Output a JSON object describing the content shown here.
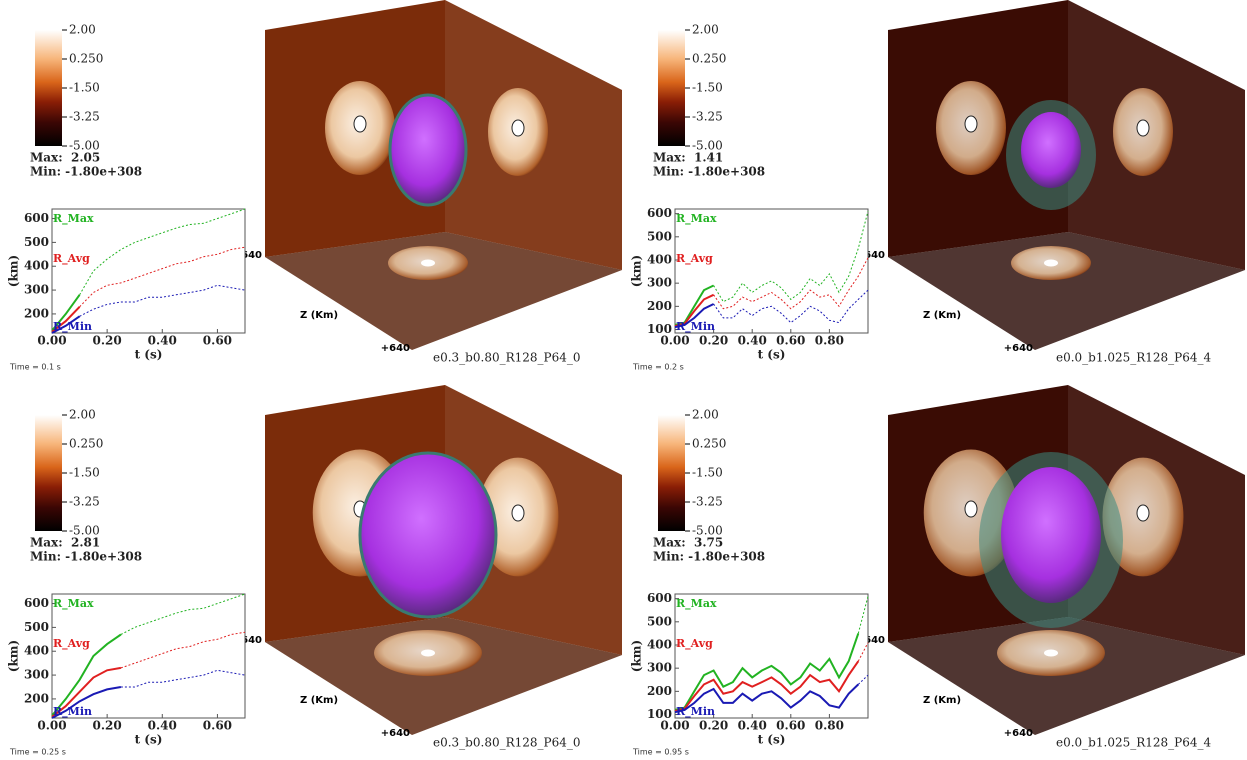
{
  "chart_data": [
    {
      "type": "line",
      "title": "e0.3_b0.80_R128_P64_0",
      "time_label": "Time = 0.1 s",
      "xlabel": "t (s)",
      "ylabel": "(km)",
      "x": [
        0,
        0.05,
        0.1,
        0.15,
        0.2,
        0.25,
        0.3,
        0.35,
        0.4,
        0.45,
        0.5,
        0.55,
        0.6,
        0.65,
        0.7
      ],
      "xlim": [
        0,
        0.7
      ],
      "ylim": [
        120,
        640
      ],
      "xticks": [
        {
          "value": 0,
          "label": "0.00"
        },
        {
          "value": 0.2,
          "label": "0.20"
        },
        {
          "value": 0.4,
          "label": "0.40"
        },
        {
          "value": 0.6,
          "label": "0.60"
        }
      ],
      "yticks": [
        200,
        300,
        400,
        500,
        600
      ],
      "series": [
        {
          "name": "R_Max",
          "color": "#22b322",
          "dashed": false,
          "values": [
            130,
            200,
            280,
            null,
            null,
            null,
            null,
            null,
            null,
            null,
            null,
            null,
            null,
            null,
            null
          ]
        },
        {
          "color": "#22b322",
          "dashed": true,
          "values": [
            null,
            null,
            280,
            380,
            430,
            470,
            500,
            520,
            540,
            560,
            575,
            580,
            600,
            620,
            640
          ]
        },
        {
          "name": "R_Avg",
          "color": "#e02020",
          "dashed": false,
          "values": [
            125,
            170,
            230,
            null,
            null,
            null,
            null,
            null,
            null,
            null,
            null,
            null,
            null,
            null,
            null
          ]
        },
        {
          "color": "#e02020",
          "dashed": true,
          "values": [
            null,
            null,
            230,
            290,
            320,
            330,
            350,
            370,
            390,
            410,
            420,
            440,
            450,
            470,
            480
          ]
        },
        {
          "name": "R_Min",
          "color": "#1a1ab4",
          "dashed": false,
          "values": [
            120,
            150,
            190,
            null,
            null,
            null,
            null,
            null,
            null,
            null,
            null,
            null,
            null,
            null,
            null
          ]
        },
        {
          "color": "#1a1ab4",
          "dashed": true,
          "values": [
            null,
            null,
            190,
            220,
            240,
            250,
            250,
            270,
            270,
            280,
            290,
            300,
            320,
            310,
            300
          ]
        }
      ],
      "colorbar": {
        "lim": [
          -5,
          2
        ],
        "ticks": [
          {
            "value": 2,
            "label": "2.00"
          },
          {
            "value": 0.25,
            "label": "0.250"
          },
          {
            "value": -1.5,
            "label": "-1.50"
          },
          {
            "value": -3.25,
            "label": "-3.25"
          },
          {
            "value": -5,
            "label": "-5.00"
          }
        ]
      },
      "max_label": "Max:  2.05",
      "min_label": "Min: -1.80e+308",
      "z_axis": {
        "label": "Z (Km)",
        "ticks": [
          "-640",
          "+640"
        ]
      },
      "box_color": "#7b2c0a"
    },
    {
      "type": "line",
      "title": "e0.0_b1.025_R128_P64_4",
      "time_label": "Time = 0.2 s",
      "xlabel": "t (s)",
      "ylabel": "(km)",
      "x": [
        0,
        0.05,
        0.1,
        0.15,
        0.2,
        0.25,
        0.3,
        0.35,
        0.4,
        0.45,
        0.5,
        0.55,
        0.6,
        0.65,
        0.7,
        0.75,
        0.8,
        0.85,
        0.9,
        0.95,
        1.0
      ],
      "xlim": [
        0,
        1.0
      ],
      "ylim": [
        85,
        620
      ],
      "xticks": [
        {
          "value": 0,
          "label": "0.00"
        },
        {
          "value": 0.2,
          "label": "0.20"
        },
        {
          "value": 0.4,
          "label": "0.40"
        },
        {
          "value": 0.6,
          "label": "0.60"
        },
        {
          "value": 0.8,
          "label": "0.80"
        }
      ],
      "yticks": [
        100,
        200,
        300,
        400,
        500,
        600
      ],
      "series": [
        {
          "name": "R_Max",
          "color": "#22b322",
          "dashed": false,
          "values": [
            120,
            130,
            200,
            270,
            290,
            null,
            null,
            null,
            null,
            null,
            null,
            null,
            null,
            null,
            null,
            null,
            null,
            null,
            null,
            null,
            null
          ]
        },
        {
          "color": "#22b322",
          "dashed": true,
          "values": [
            null,
            null,
            null,
            null,
            290,
            220,
            240,
            300,
            260,
            290,
            310,
            280,
            230,
            260,
            320,
            290,
            340,
            260,
            330,
            450,
            610
          ]
        },
        {
          "name": "R_Avg",
          "color": "#e02020",
          "dashed": false,
          "values": [
            115,
            125,
            180,
            230,
            250,
            null,
            null,
            null,
            null,
            null,
            null,
            null,
            null,
            null,
            null,
            null,
            null,
            null,
            null,
            null,
            null
          ]
        },
        {
          "color": "#e02020",
          "dashed": true,
          "values": [
            null,
            null,
            null,
            null,
            250,
            190,
            200,
            240,
            220,
            240,
            260,
            230,
            190,
            220,
            270,
            240,
            250,
            200,
            270,
            330,
            410
          ]
        },
        {
          "name": "R_Min",
          "color": "#1a1ab4",
          "dashed": false,
          "values": [
            110,
            120,
            150,
            190,
            210,
            null,
            null,
            null,
            null,
            null,
            null,
            null,
            null,
            null,
            null,
            null,
            null,
            null,
            null,
            null,
            null
          ]
        },
        {
          "color": "#1a1ab4",
          "dashed": true,
          "values": [
            null,
            null,
            null,
            null,
            210,
            150,
            150,
            190,
            160,
            190,
            200,
            170,
            130,
            160,
            200,
            180,
            140,
            130,
            190,
            230,
            270
          ]
        }
      ],
      "colorbar": {
        "lim": [
          -5,
          2
        ],
        "ticks": [
          {
            "value": 2,
            "label": "2.00"
          },
          {
            "value": 0.25,
            "label": "0.250"
          },
          {
            "value": -1.5,
            "label": "-1.50"
          },
          {
            "value": -3.25,
            "label": "-3.25"
          },
          {
            "value": -5,
            "label": "-5.00"
          }
        ]
      },
      "max_label": "Max:  1.41",
      "min_label": "Min: -1.80e+308",
      "z_axis": {
        "label": "Z (Km)",
        "ticks": [
          "-640",
          "+640"
        ]
      },
      "box_color": "#3a0c04"
    },
    {
      "type": "line",
      "title": "e0.3_b0.80_R128_P64_0",
      "time_label": "Time = 0.25 s",
      "xlabel": "t (s)",
      "ylabel": "(km)",
      "x": [
        0,
        0.05,
        0.1,
        0.15,
        0.2,
        0.25,
        0.3,
        0.35,
        0.4,
        0.45,
        0.5,
        0.55,
        0.6,
        0.65,
        0.7
      ],
      "xlim": [
        0,
        0.7
      ],
      "ylim": [
        120,
        640
      ],
      "xticks": [
        {
          "value": 0,
          "label": "0.00"
        },
        {
          "value": 0.2,
          "label": "0.20"
        },
        {
          "value": 0.4,
          "label": "0.40"
        },
        {
          "value": 0.6,
          "label": "0.60"
        }
      ],
      "yticks": [
        200,
        300,
        400,
        500,
        600
      ],
      "series": [
        {
          "name": "R_Max",
          "color": "#22b322",
          "dashed": false,
          "values": [
            130,
            200,
            280,
            380,
            430,
            470,
            null,
            null,
            null,
            null,
            null,
            null,
            null,
            null,
            null
          ]
        },
        {
          "color": "#22b322",
          "dashed": true,
          "values": [
            null,
            null,
            null,
            null,
            null,
            470,
            500,
            520,
            540,
            560,
            575,
            580,
            600,
            620,
            640
          ]
        },
        {
          "name": "R_Avg",
          "color": "#e02020",
          "dashed": false,
          "values": [
            125,
            170,
            230,
            290,
            320,
            330,
            null,
            null,
            null,
            null,
            null,
            null,
            null,
            null,
            null
          ]
        },
        {
          "color": "#e02020",
          "dashed": true,
          "values": [
            null,
            null,
            null,
            null,
            null,
            330,
            350,
            370,
            390,
            410,
            420,
            440,
            450,
            470,
            480
          ]
        },
        {
          "name": "R_Min",
          "color": "#1a1ab4",
          "dashed": false,
          "values": [
            120,
            150,
            190,
            220,
            240,
            250,
            null,
            null,
            null,
            null,
            null,
            null,
            null,
            null,
            null
          ]
        },
        {
          "color": "#1a1ab4",
          "dashed": true,
          "values": [
            null,
            null,
            null,
            null,
            null,
            250,
            250,
            270,
            270,
            280,
            290,
            300,
            320,
            310,
            300
          ]
        }
      ],
      "colorbar": {
        "lim": [
          -5,
          2
        ],
        "ticks": [
          {
            "value": 2,
            "label": "2.00"
          },
          {
            "value": 0.25,
            "label": "0.250"
          },
          {
            "value": -1.5,
            "label": "-1.50"
          },
          {
            "value": -3.25,
            "label": "-3.25"
          },
          {
            "value": -5,
            "label": "-5.00"
          }
        ]
      },
      "max_label": "Max:  2.81",
      "min_label": "Min: -1.80e+308",
      "z_axis": {
        "label": "Z (Km)",
        "ticks": [
          "-640",
          "+640"
        ]
      },
      "box_color": "#7b2c0a"
    },
    {
      "type": "line",
      "title": "e0.0_b1.025_R128_P64_4",
      "time_label": "Time = 0.95 s",
      "xlabel": "t (s)",
      "ylabel": "(km)",
      "x": [
        0,
        0.05,
        0.1,
        0.15,
        0.2,
        0.25,
        0.3,
        0.35,
        0.4,
        0.45,
        0.5,
        0.55,
        0.6,
        0.65,
        0.7,
        0.75,
        0.8,
        0.85,
        0.9,
        0.95,
        1.0
      ],
      "xlim": [
        0,
        1.0
      ],
      "ylim": [
        85,
        620
      ],
      "xticks": [
        {
          "value": 0,
          "label": "0.00"
        },
        {
          "value": 0.2,
          "label": "0.20"
        },
        {
          "value": 0.4,
          "label": "0.40"
        },
        {
          "value": 0.6,
          "label": "0.60"
        },
        {
          "value": 0.8,
          "label": "0.80"
        }
      ],
      "yticks": [
        100,
        200,
        300,
        400,
        500,
        600
      ],
      "series": [
        {
          "name": "R_Max",
          "color": "#22b322",
          "dashed": false,
          "values": [
            120,
            130,
            200,
            270,
            290,
            220,
            240,
            300,
            260,
            290,
            310,
            280,
            230,
            260,
            320,
            290,
            340,
            260,
            330,
            450,
            null
          ]
        },
        {
          "color": "#22b322",
          "dashed": true,
          "values": [
            null,
            null,
            null,
            null,
            null,
            null,
            null,
            null,
            null,
            null,
            null,
            null,
            null,
            null,
            null,
            null,
            null,
            null,
            null,
            450,
            610
          ]
        },
        {
          "name": "R_Avg",
          "color": "#e02020",
          "dashed": false,
          "values": [
            115,
            125,
            180,
            230,
            250,
            190,
            200,
            240,
            220,
            240,
            260,
            230,
            190,
            220,
            270,
            240,
            250,
            200,
            270,
            330,
            null
          ]
        },
        {
          "color": "#e02020",
          "dashed": true,
          "values": [
            null,
            null,
            null,
            null,
            null,
            null,
            null,
            null,
            null,
            null,
            null,
            null,
            null,
            null,
            null,
            null,
            null,
            null,
            null,
            330,
            410
          ]
        },
        {
          "name": "R_Min",
          "color": "#1a1ab4",
          "dashed": false,
          "values": [
            110,
            120,
            150,
            190,
            210,
            150,
            150,
            190,
            160,
            190,
            200,
            170,
            130,
            160,
            200,
            180,
            140,
            130,
            190,
            230,
            null
          ]
        },
        {
          "color": "#1a1ab4",
          "dashed": true,
          "values": [
            null,
            null,
            null,
            null,
            null,
            null,
            null,
            null,
            null,
            null,
            null,
            null,
            null,
            null,
            null,
            null,
            null,
            null,
            null,
            230,
            270
          ]
        }
      ],
      "colorbar": {
        "lim": [
          -5,
          2
        ],
        "ticks": [
          {
            "value": 2,
            "label": "2.00"
          },
          {
            "value": 0.25,
            "label": "0.250"
          },
          {
            "value": -1.5,
            "label": "-1.50"
          },
          {
            "value": -3.25,
            "label": "-3.25"
          },
          {
            "value": -5,
            "label": "-5.00"
          }
        ]
      },
      "max_label": "Max:  3.75",
      "min_label": "Min: -1.80e+308",
      "z_axis": {
        "label": "Z (Km)",
        "ticks": [
          "-640",
          "+640"
        ]
      },
      "box_color": "#3a0c04"
    }
  ]
}
